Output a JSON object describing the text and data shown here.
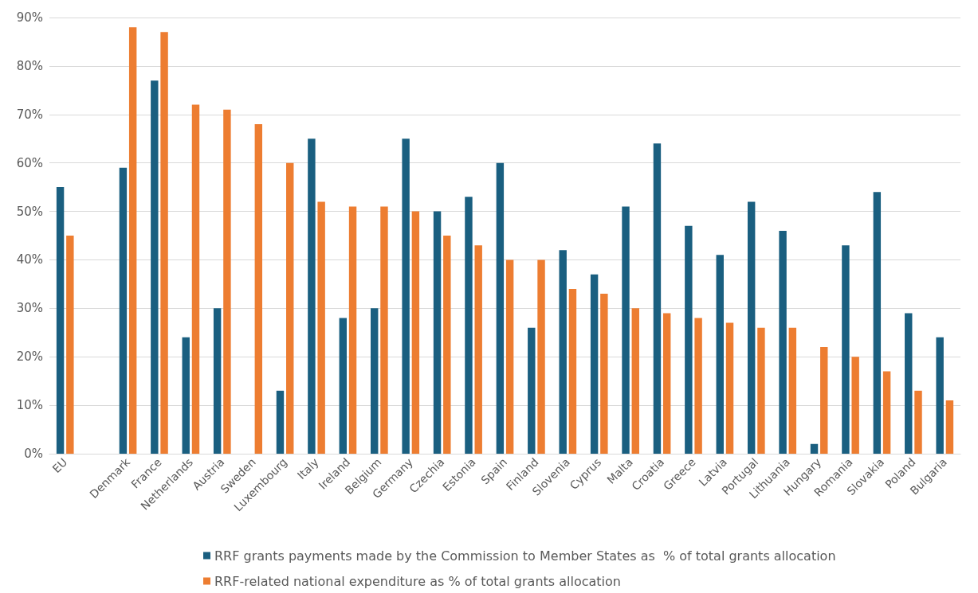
{
  "chart_data": {
    "type": "bar",
    "categories": [
      "EU",
      null,
      "Denmark",
      "France",
      "Netherlands",
      "Austria",
      "Sweden",
      "Luxembourg",
      "Italy",
      "Ireland",
      "Belgium",
      "Germany",
      "Czechia",
      "Estonia",
      "Spain",
      "Finland",
      "Slovenia",
      "Cyprus",
      "Malta",
      "Croatia",
      "Greece",
      "Latvia",
      "Portugal",
      "Lithuania",
      "Hungary",
      "Romania",
      "Slovakia",
      "Poland",
      "Bulgaria"
    ],
    "series": [
      {
        "name": "RRF grants payments made by the Commission to Member States as  % of total grants allocation",
        "color": "#1a5f80",
        "values": [
          55,
          null,
          59,
          77,
          24,
          30,
          null,
          13,
          65,
          28,
          30,
          65,
          50,
          53,
          60,
          26,
          42,
          37,
          51,
          64,
          47,
          41,
          52,
          46,
          2,
          43,
          54,
          29,
          24
        ]
      },
      {
        "name": "RRF-related national expenditure as % of total grants allocation",
        "color": "#ed7d31",
        "values": [
          45,
          null,
          88,
          87,
          72,
          71,
          68,
          60,
          52,
          51,
          51,
          50,
          45,
          43,
          40,
          40,
          34,
          33,
          30,
          29,
          28,
          27,
          26,
          26,
          22,
          20,
          17,
          13,
          11
        ]
      }
    ],
    "ylim": [
      0,
      90
    ],
    "yticks": [
      {
        "value": 0,
        "label": "0%"
      },
      {
        "value": 10,
        "label": "10%"
      },
      {
        "value": 20,
        "label": "20%"
      },
      {
        "value": 30,
        "label": "30%"
      },
      {
        "value": 40,
        "label": "40%"
      },
      {
        "value": 50,
        "label": "50%"
      },
      {
        "value": 60,
        "label": "60%"
      },
      {
        "value": 70,
        "label": "70%"
      },
      {
        "value": 80,
        "label": "80%"
      },
      {
        "value": 90,
        "label": "90%"
      }
    ],
    "grid": "y",
    "legend": "bottom"
  }
}
